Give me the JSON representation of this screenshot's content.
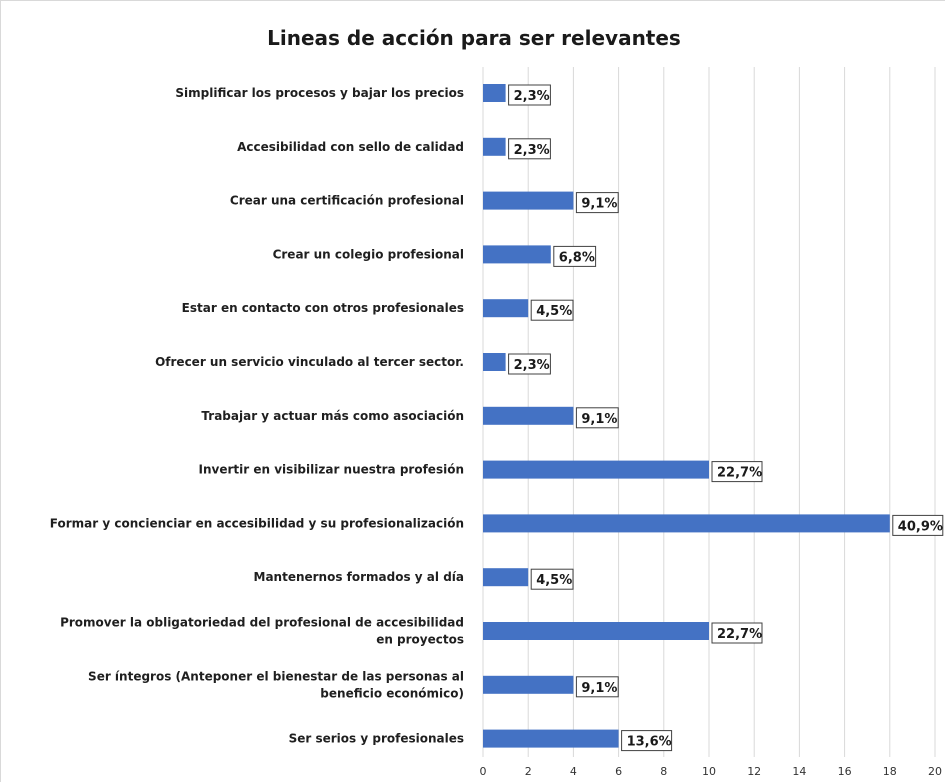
{
  "chart_data": {
    "type": "bar",
    "orientation": "horizontal",
    "title": "Lineas de acción para ser relevantes",
    "categories": [
      "Simplificar los procesos y bajar los precios",
      "Accesibilidad con sello de calidad",
      "Crear una certificación profesional",
      "Crear un colegio profesional",
      "Estar en contacto con otros profesionales",
      "Ofrecer un servicio vinculado al tercer sector.",
      "Trabajar y actuar más como asociación",
      "Invertir en visibilizar nuestra profesión",
      "Formar y concienciar en accesibilidad y su profesionalización",
      "Mantenernos formados y al día",
      "Promover la obligatoriedad del profesional de accesibilidad en proyectos",
      "Ser íntegros (Anteponer el bienestar de las personas al beneficio económico)",
      "Ser serios y profesionales"
    ],
    "category_lines": [
      [
        "Simplificar los procesos y bajar los precios"
      ],
      [
        "Accesibilidad con sello de calidad"
      ],
      [
        "Crear una certificación profesional"
      ],
      [
        "Crear un colegio profesional"
      ],
      [
        "Estar en contacto con otros profesionales"
      ],
      [
        "Ofrecer un servicio vinculado al tercer sector."
      ],
      [
        "Trabajar y actuar más como asociación"
      ],
      [
        "Invertir en visibilizar nuestra profesión"
      ],
      [
        "Formar y concienciar en accesibilidad y su profesionalización"
      ],
      [
        "Mantenernos formados y al día"
      ],
      [
        "Promover la obligatoriedad del profesional de accesibilidad",
        "en proyectos"
      ],
      [
        "Ser íntegros (Anteponer el bienestar de las personas al",
        "beneficio económico)"
      ],
      [
        "Ser serios y profesionales"
      ]
    ],
    "values": [
      1,
      1,
      4,
      3,
      2,
      1,
      4,
      10,
      18,
      2,
      10,
      4,
      6
    ],
    "data_labels": [
      "2,3%",
      "2,3%",
      "9,1%",
      "6,8%",
      "4,5%",
      "2,3%",
      "9,1%",
      "22,7%",
      "40,9%",
      "4,5%",
      "22,7%",
      "9,1%",
      "13,6%"
    ],
    "xlim": [
      0,
      20
    ],
    "xticks": [
      0,
      2,
      4,
      6,
      8,
      10,
      12,
      14,
      16,
      18,
      20
    ],
    "grid": true,
    "legend": "none",
    "bar_color": "#4472c4"
  }
}
